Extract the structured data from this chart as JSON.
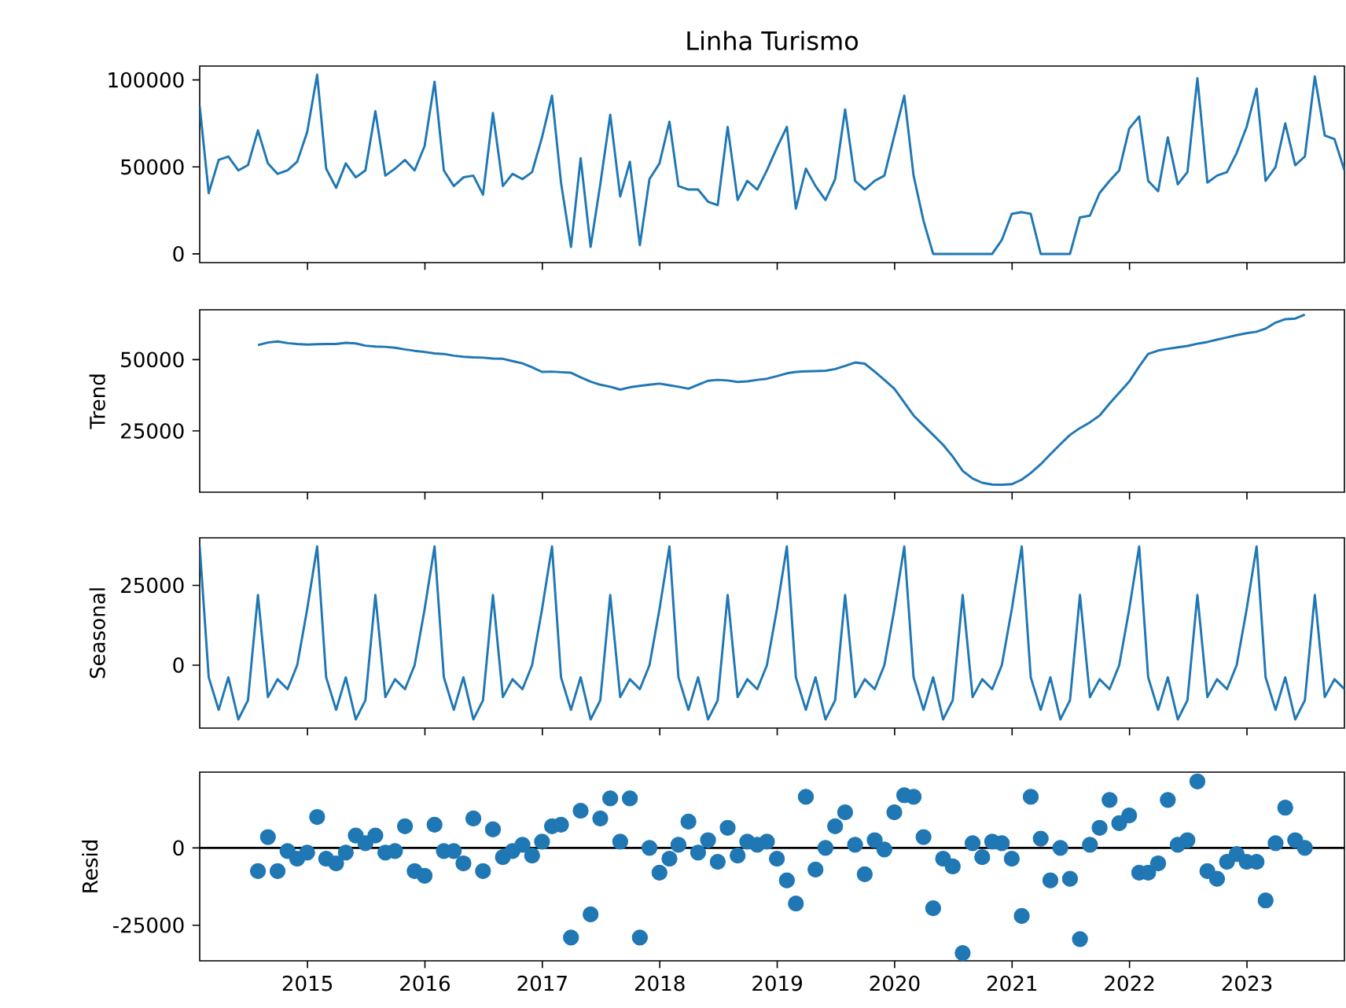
{
  "chart_data": [
    {
      "type": "line",
      "title": "Linha Turismo",
      "color": "#1f77b4",
      "x": [
        "2014-01-31",
        "2014-02-28",
        "2014-03-31",
        "2014-04-30",
        "2014-05-31",
        "2014-06-30",
        "2014-07-31",
        "2014-08-31",
        "2014-09-30",
        "2014-10-31",
        "2014-11-30",
        "2014-12-31",
        "2015-01-31",
        "2015-02-28",
        "2015-03-31",
        "2015-04-30",
        "2015-05-31",
        "2015-06-30",
        "2015-07-31",
        "2015-08-31",
        "2015-09-30",
        "2015-10-31",
        "2015-11-30",
        "2015-12-31",
        "2016-01-31",
        "2016-02-29",
        "2016-03-31",
        "2016-04-30",
        "2016-05-31",
        "2016-06-30",
        "2016-07-31",
        "2016-08-31",
        "2016-09-30",
        "2016-10-31",
        "2016-11-30",
        "2016-12-31",
        "2017-01-31",
        "2017-02-28",
        "2017-03-31",
        "2017-04-30",
        "2017-05-31",
        "2017-06-30",
        "2017-07-31",
        "2017-08-31",
        "2017-09-30",
        "2017-10-31",
        "2017-11-30",
        "2017-12-31",
        "2018-01-31",
        "2018-02-28",
        "2018-03-31",
        "2018-04-30",
        "2018-05-31",
        "2018-06-30",
        "2018-07-31",
        "2018-08-31",
        "2018-09-30",
        "2018-10-31",
        "2018-11-30",
        "2018-12-31",
        "2019-01-31",
        "2019-02-28",
        "2019-03-31",
        "2019-04-30",
        "2019-05-31",
        "2019-06-30",
        "2019-07-31",
        "2019-08-31",
        "2019-09-30",
        "2019-10-31",
        "2019-11-30",
        "2019-12-31",
        "2020-01-31",
        "2020-02-29",
        "2020-03-31",
        "2020-04-30",
        "2020-05-31",
        "2020-06-30",
        "2020-07-31",
        "2020-08-31",
        "2020-09-30",
        "2020-10-31",
        "2020-11-30",
        "2020-12-31",
        "2021-01-31",
        "2021-02-28",
        "2021-03-31",
        "2021-04-30",
        "2021-05-31",
        "2021-06-30",
        "2021-07-31",
        "2021-08-31",
        "2021-09-30",
        "2021-10-31",
        "2021-11-30",
        "2021-12-31",
        "2022-01-31",
        "2022-02-28",
        "2022-03-31",
        "2022-04-30",
        "2022-05-31",
        "2022-06-30",
        "2022-07-31",
        "2022-08-31",
        "2022-09-30",
        "2022-10-31",
        "2022-11-30",
        "2022-12-31",
        "2023-01-31",
        "2023-02-28",
        "2023-03-31",
        "2023-04-30",
        "2023-05-31",
        "2023-06-30",
        "2023-07-31",
        "2023-08-31",
        "2023-09-30",
        "2023-10-31"
      ],
      "values": [
        85000,
        35000,
        54000,
        56000,
        48000,
        51000,
        71000,
        52000,
        46000,
        48000,
        53000,
        70000,
        103000,
        49000,
        38000,
        52000,
        44000,
        48000,
        82000,
        45000,
        49000,
        54000,
        48000,
        62000,
        99000,
        48000,
        39000,
        44000,
        45000,
        34000,
        81000,
        39000,
        46000,
        43000,
        47000,
        67000,
        91000,
        41000,
        4000,
        55000,
        4000,
        40000,
        80000,
        33000,
        53000,
        5000,
        43000,
        52000,
        76000,
        39000,
        37000,
        37000,
        30000,
        28000,
        73000,
        31000,
        42000,
        37000,
        48000,
        61000,
        73000,
        26000,
        49000,
        39000,
        31000,
        43000,
        83000,
        42000,
        37000,
        42000,
        45000,
        68000,
        91000,
        45000,
        19000,
        0,
        0,
        0,
        0,
        0,
        0,
        0,
        8000,
        23000,
        24000,
        23000,
        0,
        0,
        0,
        0,
        21000,
        22000,
        35000,
        42000,
        48000,
        72000,
        79000,
        42000,
        36000,
        67000,
        40000,
        47000,
        101000,
        41000,
        45000,
        47000,
        58000,
        73000,
        95000,
        42000,
        50000,
        75000,
        51000,
        56000,
        102000,
        68000,
        66000,
        48000
      ],
      "xlim": [
        "2014-01-31",
        "2023-10-31"
      ],
      "xticks": [
        "2015",
        "2016",
        "2017",
        "2018",
        "2019",
        "2020",
        "2021",
        "2022",
        "2023"
      ],
      "ylim": [
        -5000,
        108000
      ],
      "yticks": [
        0,
        50000,
        100000
      ],
      "tick_labels": "y"
    },
    {
      "type": "line",
      "ylabel": "Trend",
      "color": "#1f77b4",
      "x": [
        "2014-07-31",
        "2014-08-31",
        "2014-09-30",
        "2014-10-31",
        "2014-11-30",
        "2014-12-31",
        "2015-01-31",
        "2015-02-28",
        "2015-03-31",
        "2015-04-30",
        "2015-05-31",
        "2015-06-30",
        "2015-07-31",
        "2015-08-31",
        "2015-09-30",
        "2015-10-31",
        "2015-11-30",
        "2015-12-31",
        "2016-01-31",
        "2016-02-29",
        "2016-03-31",
        "2016-04-30",
        "2016-05-31",
        "2016-06-30",
        "2016-07-31",
        "2016-08-31",
        "2016-09-30",
        "2016-10-31",
        "2016-11-30",
        "2016-12-31",
        "2017-01-31",
        "2017-02-28",
        "2017-03-31",
        "2017-04-30",
        "2017-05-31",
        "2017-06-30",
        "2017-07-31",
        "2017-08-31",
        "2017-09-30",
        "2017-10-31",
        "2017-11-30",
        "2017-12-31",
        "2018-01-31",
        "2018-02-28",
        "2018-03-31",
        "2018-04-30",
        "2018-05-31",
        "2018-06-30",
        "2018-07-31",
        "2018-08-31",
        "2018-09-30",
        "2018-10-31",
        "2018-11-30",
        "2018-12-31",
        "2019-01-31",
        "2019-02-28",
        "2019-03-31",
        "2019-04-30",
        "2019-05-31",
        "2019-06-30",
        "2019-07-31",
        "2019-08-31",
        "2019-09-30",
        "2019-10-31",
        "2019-11-30",
        "2019-12-31",
        "2020-01-31",
        "2020-02-29",
        "2020-03-31",
        "2020-04-30",
        "2020-05-31",
        "2020-06-30",
        "2020-07-31",
        "2020-08-31",
        "2020-09-30",
        "2020-10-31",
        "2020-11-30",
        "2020-12-31",
        "2021-01-31",
        "2021-02-28",
        "2021-03-31",
        "2021-04-30",
        "2021-05-31",
        "2021-06-30",
        "2021-07-31",
        "2021-08-31",
        "2021-09-30",
        "2021-10-31",
        "2021-11-30",
        "2021-12-31",
        "2022-01-31",
        "2022-02-28",
        "2022-03-31",
        "2022-04-30",
        "2022-05-31",
        "2022-06-30",
        "2022-07-31",
        "2022-08-31",
        "2022-09-30",
        "2022-10-31",
        "2022-11-30",
        "2022-12-31",
        "2023-01-31",
        "2023-02-28",
        "2023-03-31",
        "2023-04-30",
        "2023-05-31",
        "2023-06-30"
      ],
      "values": [
        55100,
        56000,
        56400,
        55800,
        55500,
        55300,
        55400,
        55500,
        55500,
        55900,
        55700,
        54900,
        54600,
        54500,
        54200,
        53600,
        53100,
        52700,
        52200,
        52000,
        51400,
        51000,
        50800,
        50700,
        50400,
        50300,
        49500,
        48700,
        47300,
        45700,
        45800,
        45600,
        45400,
        43800,
        42300,
        41200,
        40500,
        39500,
        40300,
        40800,
        41200,
        41600,
        41000,
        40500,
        39800,
        41200,
        42600,
        42900,
        42700,
        42200,
        42400,
        42900,
        43300,
        44200,
        45200,
        45700,
        45900,
        46000,
        46100,
        46700,
        47800,
        49000,
        48600,
        45800,
        42900,
        39800,
        35000,
        30400,
        26900,
        23600,
        20100,
        16000,
        11000,
        8300,
        6800,
        6200,
        6100,
        6300,
        7900,
        10200,
        13300,
        16800,
        20300,
        23600,
        26000,
        28000,
        30400,
        34600,
        38400,
        42300,
        47600,
        52000,
        53200,
        53800,
        54300,
        54800,
        55600,
        56200,
        57000,
        57800,
        58600,
        59300,
        59800,
        60900,
        63000,
        64200,
        64400,
        65800
      ],
      "xlim": [
        "2014-01-31",
        "2023-10-31"
      ],
      "xticks": [
        "2015",
        "2016",
        "2017",
        "2018",
        "2019",
        "2020",
        "2021",
        "2022",
        "2023"
      ],
      "ylim": [
        3500,
        67500
      ],
      "yticks": [
        25000,
        50000
      ],
      "tick_labels": "y"
    },
    {
      "type": "line",
      "ylabel": "Seasonal",
      "color": "#1f77b4",
      "x": [
        "2014-01-31",
        "2014-02-28",
        "2014-03-31",
        "2014-04-30",
        "2014-05-31",
        "2014-06-30",
        "2014-07-31",
        "2014-08-31",
        "2014-09-30",
        "2014-10-31",
        "2014-11-30",
        "2014-12-31",
        "2015-01-31",
        "2015-02-28",
        "2015-03-31",
        "2015-04-30",
        "2015-05-31",
        "2015-06-30",
        "2015-07-31",
        "2015-08-31",
        "2015-09-30",
        "2015-10-31",
        "2015-11-30",
        "2015-12-31",
        "2016-01-31",
        "2016-02-29",
        "2016-03-31",
        "2016-04-30",
        "2016-05-31",
        "2016-06-30",
        "2016-07-31",
        "2016-08-31",
        "2016-09-30",
        "2016-10-31",
        "2016-11-30",
        "2016-12-31",
        "2017-01-31",
        "2017-02-28",
        "2017-03-31",
        "2017-04-30",
        "2017-05-31",
        "2017-06-30",
        "2017-07-31",
        "2017-08-31",
        "2017-09-30",
        "2017-10-31",
        "2017-11-30",
        "2017-12-31",
        "2018-01-31",
        "2018-02-28",
        "2018-03-31",
        "2018-04-30",
        "2018-05-31",
        "2018-06-30",
        "2018-07-31",
        "2018-08-31",
        "2018-09-30",
        "2018-10-31",
        "2018-11-30",
        "2018-12-31",
        "2019-01-31",
        "2019-02-28",
        "2019-03-31",
        "2019-04-30",
        "2019-05-31",
        "2019-06-30",
        "2019-07-31",
        "2019-08-31",
        "2019-09-30",
        "2019-10-31",
        "2019-11-30",
        "2019-12-31",
        "2020-01-31",
        "2020-02-29",
        "2020-03-31",
        "2020-04-30",
        "2020-05-31",
        "2020-06-30",
        "2020-07-31",
        "2020-08-31",
        "2020-09-30",
        "2020-10-31",
        "2020-11-30",
        "2020-12-31",
        "2021-01-31",
        "2021-02-28",
        "2021-03-31",
        "2021-04-30",
        "2021-05-31",
        "2021-06-30",
        "2021-07-31",
        "2021-08-31",
        "2021-09-30",
        "2021-10-31",
        "2021-11-30",
        "2021-12-31",
        "2022-01-31",
        "2022-02-28",
        "2022-03-31",
        "2022-04-30",
        "2022-05-31",
        "2022-06-30",
        "2022-07-31",
        "2022-08-31",
        "2022-09-30",
        "2022-10-31",
        "2022-11-30",
        "2022-12-31",
        "2023-01-31",
        "2023-02-28",
        "2023-03-31",
        "2023-04-30",
        "2023-05-31",
        "2023-06-30",
        "2023-07-31",
        "2023-08-31",
        "2023-09-30",
        "2023-10-31"
      ],
      "values": [
        37200,
        -3800,
        -14000,
        -3800,
        -17000,
        -11000,
        22000,
        -10000,
        -4400,
        -7500,
        0,
        17500,
        37200,
        -3800,
        -14000,
        -3800,
        -17000,
        -11000,
        22000,
        -10000,
        -4400,
        -7500,
        0,
        17500,
        37200,
        -3800,
        -14000,
        -3800,
        -17000,
        -11000,
        22000,
        -10000,
        -4400,
        -7500,
        0,
        17500,
        37200,
        -3800,
        -14000,
        -3800,
        -17000,
        -11000,
        22000,
        -10000,
        -4400,
        -7500,
        0,
        17500,
        37200,
        -3800,
        -14000,
        -3800,
        -17000,
        -11000,
        22000,
        -10000,
        -4400,
        -7500,
        0,
        17500,
        37200,
        -3800,
        -14000,
        -3800,
        -17000,
        -11000,
        22000,
        -10000,
        -4400,
        -7500,
        0,
        17500,
        37200,
        -3800,
        -14000,
        -3800,
        -17000,
        -11000,
        22000,
        -10000,
        -4400,
        -7500,
        0,
        17500,
        37200,
        -3800,
        -14000,
        -3800,
        -17000,
        -11000,
        22000,
        -10000,
        -4400,
        -7500,
        0,
        17500,
        37200,
        -3800,
        -14000,
        -3800,
        -17000,
        -11000,
        22000,
        -10000,
        -4400,
        -7500,
        0,
        17500,
        37200,
        -3800,
        -14000,
        -3800,
        -17000,
        -11000,
        22000,
        -10000,
        -4400,
        -7500
      ],
      "xlim": [
        "2014-01-31",
        "2023-10-31"
      ],
      "xticks": [
        "2015",
        "2016",
        "2017",
        "2018",
        "2019",
        "2020",
        "2021",
        "2022",
        "2023"
      ],
      "ylim": [
        -19700,
        39900
      ],
      "yticks": [
        0,
        25000
      ],
      "tick_labels": "y"
    },
    {
      "type": "scatter",
      "ylabel": "Resid",
      "color": "#1f77b4",
      "x": [
        "2014-07-31",
        "2014-08-31",
        "2014-09-30",
        "2014-10-31",
        "2014-11-30",
        "2014-12-31",
        "2015-01-31",
        "2015-02-28",
        "2015-03-31",
        "2015-04-30",
        "2015-05-31",
        "2015-06-30",
        "2015-07-31",
        "2015-08-31",
        "2015-09-30",
        "2015-10-31",
        "2015-11-30",
        "2015-12-31",
        "2016-01-31",
        "2016-02-29",
        "2016-03-31",
        "2016-04-30",
        "2016-05-31",
        "2016-06-30",
        "2016-07-31",
        "2016-08-31",
        "2016-09-30",
        "2016-10-31",
        "2016-11-30",
        "2016-12-31",
        "2017-01-31",
        "2017-02-28",
        "2017-03-31",
        "2017-04-30",
        "2017-05-31",
        "2017-06-30",
        "2017-07-31",
        "2017-08-31",
        "2017-09-30",
        "2017-10-31",
        "2017-11-30",
        "2017-12-31",
        "2018-01-31",
        "2018-02-28",
        "2018-03-31",
        "2018-04-30",
        "2018-05-31",
        "2018-06-30",
        "2018-07-31",
        "2018-08-31",
        "2018-09-30",
        "2018-10-31",
        "2018-11-30",
        "2018-12-31",
        "2019-01-31",
        "2019-02-28",
        "2019-03-31",
        "2019-04-30",
        "2019-05-31",
        "2019-06-30",
        "2019-07-31",
        "2019-08-31",
        "2019-09-30",
        "2019-10-31",
        "2019-11-30",
        "2019-12-31",
        "2020-01-31",
        "2020-02-29",
        "2020-03-31",
        "2020-04-30",
        "2020-05-31",
        "2020-06-30",
        "2020-07-31",
        "2020-08-31",
        "2020-09-30",
        "2020-10-31",
        "2020-11-30",
        "2020-12-31",
        "2021-01-31",
        "2021-02-28",
        "2021-03-31",
        "2021-04-30",
        "2021-05-31",
        "2021-06-30",
        "2021-07-31",
        "2021-08-31",
        "2021-09-30",
        "2021-10-31",
        "2021-11-30",
        "2021-12-31",
        "2022-01-31",
        "2022-02-28",
        "2022-03-31",
        "2022-04-30",
        "2022-05-31",
        "2022-06-30",
        "2022-07-31",
        "2022-08-31",
        "2022-09-30",
        "2022-10-31",
        "2022-11-30",
        "2022-12-31",
        "2023-01-31",
        "2023-02-28",
        "2023-03-31",
        "2023-04-30",
        "2023-05-31",
        "2023-06-30"
      ],
      "values": [
        -7500,
        3500,
        -7500,
        -1000,
        -3500,
        -1500,
        10000,
        -3500,
        -5000,
        -1500,
        4000,
        1500,
        4000,
        -1500,
        -1000,
        7000,
        -7500,
        -9000,
        7500,
        -1000,
        -1000,
        -5000,
        9500,
        -7500,
        6000,
        -3000,
        -1000,
        1000,
        -2500,
        2000,
        7000,
        7500,
        -29000,
        12000,
        -21500,
        9500,
        16000,
        2000,
        16000,
        -29000,
        0,
        -8000,
        -3500,
        1000,
        8500,
        -1500,
        2500,
        -4500,
        6500,
        -2500,
        2000,
        1000,
        2000,
        -3500,
        -10500,
        -18000,
        16500,
        -7000,
        0,
        7000,
        11500,
        1000,
        -8500,
        2500,
        -500,
        11500,
        17000,
        16500,
        3500,
        -19500,
        -3500,
        -6000,
        -34000,
        1500,
        -3000,
        2000,
        1500,
        -3500,
        -22000,
        16500,
        3000,
        -10500,
        0,
        -10000,
        -29500,
        1000,
        6500,
        15500,
        8000,
        10500,
        -8000,
        -8000,
        -5000,
        15500,
        1000,
        2500,
        21500,
        -7500,
        -10000,
        -4500,
        -2000,
        -4500,
        -4500,
        -17000,
        1500,
        13000,
        2500,
        0
      ],
      "xlim": [
        "2014-01-31",
        "2023-10-31"
      ],
      "xticks": [
        "2015",
        "2016",
        "2017",
        "2018",
        "2019",
        "2020",
        "2021",
        "2022",
        "2023"
      ],
      "ylim": [
        -36500,
        24500
      ],
      "yticks": [
        -25000,
        0
      ],
      "ref_lines": [
        {
          "axis": "y",
          "value": 0,
          "color": "#000000"
        }
      ]
    }
  ]
}
